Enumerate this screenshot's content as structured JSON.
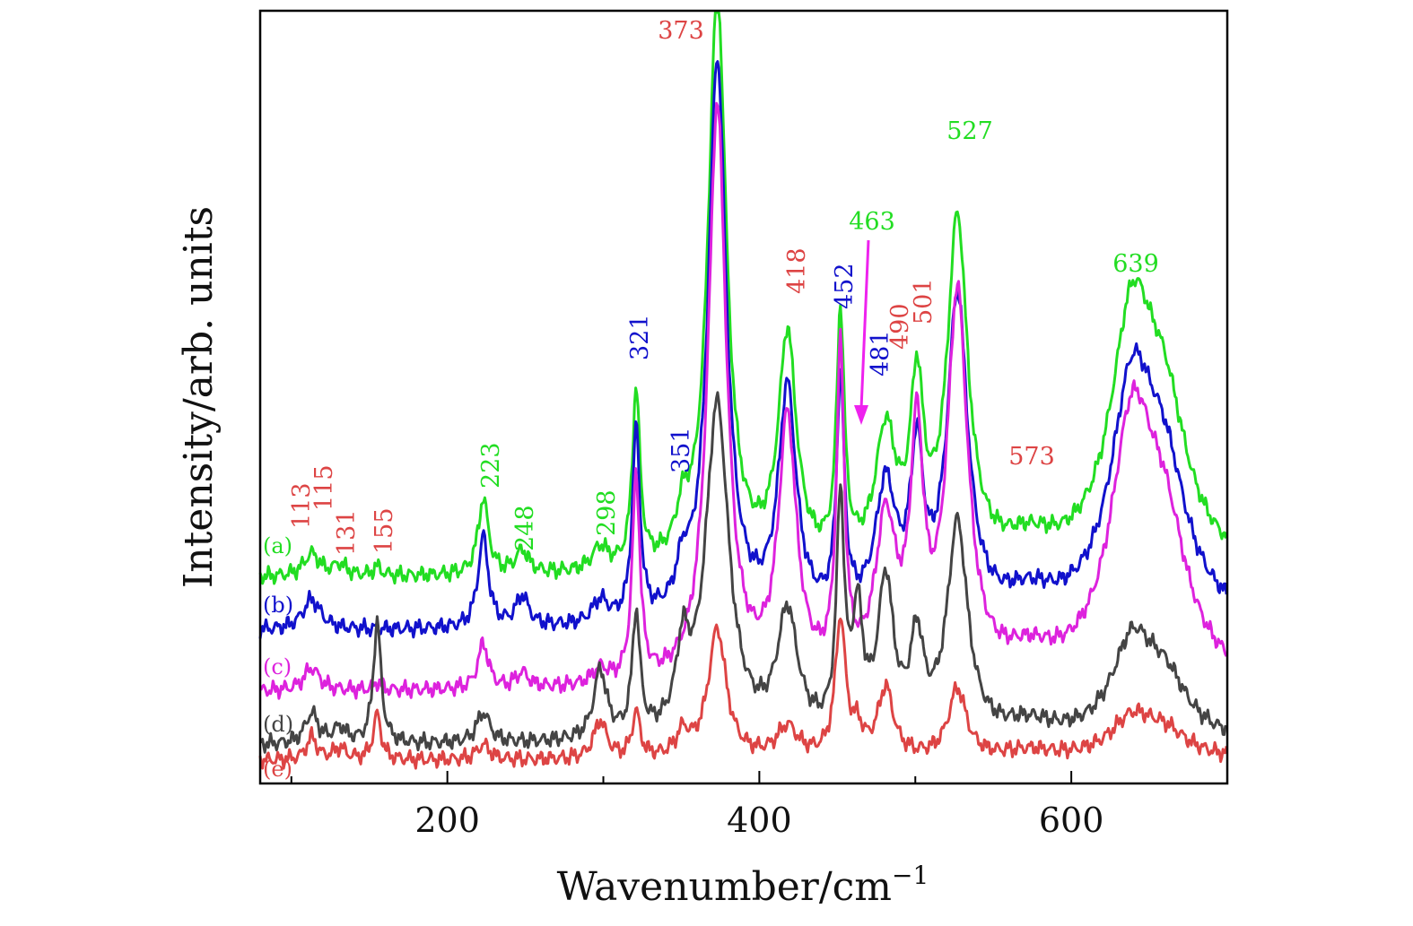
{
  "chart_data": {
    "type": "line",
    "title": "",
    "xlabel": "Wavenumber/cm",
    "xlabel_superscript": "−1",
    "ylabel": "Intensity/arb. units",
    "xlim": [
      80,
      700
    ],
    "ylim": [
      0,
      1
    ],
    "x_ticks": [
      "200",
      "400",
      "600"
    ],
    "y_ticks_labeled": false,
    "grid": false,
    "colors": {
      "green": "#22dd22",
      "blue": "#1111cc",
      "magenta": "#dd22dd",
      "gray": "#444444",
      "red": "#dd4444",
      "arrow": "#ee22ee"
    },
    "series": [
      {
        "name": "(a)",
        "color": "#22dd22",
        "base": 0.27,
        "peaks": [
          [
            113,
            0.03,
            6
          ],
          [
            131,
            0.015,
            5
          ],
          [
            155,
            0.012,
            3
          ],
          [
            223,
            0.1,
            4
          ],
          [
            248,
            0.03,
            5
          ],
          [
            298,
            0.03,
            6
          ],
          [
            321,
            0.23,
            3
          ],
          [
            351,
            0.05,
            5
          ],
          [
            373,
            0.76,
            7
          ],
          [
            418,
            0.3,
            7
          ],
          [
            452,
            0.32,
            3
          ],
          [
            481,
            0.17,
            8
          ],
          [
            501,
            0.22,
            5
          ],
          [
            527,
            0.45,
            8
          ],
          [
            573,
            0.03,
            20
          ],
          [
            639,
            0.31,
            17
          ]
        ],
        "shoulder": [
          [
            660,
            0.17,
            18
          ]
        ]
      },
      {
        "name": "(b)",
        "color": "#1111cc",
        "base": 0.2,
        "peaks": [
          [
            113,
            0.04,
            7
          ],
          [
            223,
            0.12,
            4
          ],
          [
            248,
            0.04,
            5
          ],
          [
            298,
            0.03,
            6
          ],
          [
            321,
            0.25,
            3
          ],
          [
            351,
            0.05,
            5
          ],
          [
            373,
            0.74,
            7
          ],
          [
            418,
            0.3,
            7
          ],
          [
            452,
            0.3,
            3
          ],
          [
            481,
            0.17,
            8
          ],
          [
            501,
            0.2,
            5
          ],
          [
            527,
            0.42,
            8
          ],
          [
            573,
            0.03,
            20
          ],
          [
            639,
            0.29,
            17
          ]
        ],
        "shoulder": [
          [
            660,
            0.16,
            18
          ]
        ]
      },
      {
        "name": "(c)",
        "color": "#dd22dd",
        "base": 0.12,
        "peaks": [
          [
            113,
            0.03,
            6
          ],
          [
            155,
            0.01,
            3
          ],
          [
            223,
            0.06,
            4
          ],
          [
            248,
            0.02,
            5
          ],
          [
            298,
            0.02,
            6
          ],
          [
            321,
            0.27,
            3
          ],
          [
            373,
            0.76,
            7
          ],
          [
            418,
            0.34,
            7
          ],
          [
            452,
            0.42,
            3
          ],
          [
            481,
            0.2,
            8
          ],
          [
            501,
            0.3,
            5
          ],
          [
            527,
            0.5,
            8
          ],
          [
            573,
            0.03,
            20
          ],
          [
            639,
            0.32,
            17
          ]
        ],
        "shoulder": [
          [
            660,
            0.16,
            18
          ]
        ]
      },
      {
        "name": "(d)",
        "color": "#444444",
        "base": 0.05,
        "peaks": [
          [
            113,
            0.04,
            5
          ],
          [
            131,
            0.02,
            5
          ],
          [
            155,
            0.16,
            3
          ],
          [
            223,
            0.04,
            5
          ],
          [
            298,
            0.09,
            5
          ],
          [
            321,
            0.16,
            3
          ],
          [
            351,
            0.1,
            5
          ],
          [
            373,
            0.44,
            9
          ],
          [
            418,
            0.16,
            8
          ],
          [
            452,
            0.3,
            3
          ],
          [
            463,
            0.15,
            4
          ],
          [
            481,
            0.2,
            6
          ],
          [
            501,
            0.12,
            5
          ],
          [
            527,
            0.28,
            8
          ],
          [
            573,
            0.02,
            20
          ],
          [
            639,
            0.12,
            16
          ]
        ],
        "shoulder": [
          [
            660,
            0.07,
            18
          ]
        ]
      },
      {
        "name": "(e)",
        "color": "#dd4444",
        "base": 0.03,
        "peaks": [
          [
            113,
            0.03,
            4
          ],
          [
            131,
            0.015,
            5
          ],
          [
            155,
            0.06,
            3
          ],
          [
            223,
            0.02,
            5
          ],
          [
            298,
            0.05,
            5
          ],
          [
            321,
            0.06,
            3
          ],
          [
            351,
            0.03,
            5
          ],
          [
            373,
            0.17,
            7
          ],
          [
            418,
            0.04,
            8
          ],
          [
            452,
            0.18,
            4
          ],
          [
            463,
            0.03,
            4
          ],
          [
            481,
            0.09,
            6
          ],
          [
            527,
            0.09,
            7
          ],
          [
            573,
            0.01,
            20
          ],
          [
            639,
            0.05,
            17
          ]
        ],
        "shoulder": [
          [
            660,
            0.03,
            18
          ]
        ]
      }
    ],
    "peak_annotations": [
      {
        "text": "113",
        "color": "red",
        "rotated": true
      },
      {
        "text": "115",
        "color": "red",
        "rotated": true
      },
      {
        "text": "131",
        "color": "red",
        "rotated": true
      },
      {
        "text": "155",
        "color": "red",
        "rotated": true
      },
      {
        "text": "223",
        "color": "green",
        "rotated": true
      },
      {
        "text": "248",
        "color": "green",
        "rotated": true
      },
      {
        "text": "298",
        "color": "green",
        "rotated": true
      },
      {
        "text": "321",
        "color": "blue",
        "rotated": true
      },
      {
        "text": "351",
        "color": "blue",
        "rotated": true
      },
      {
        "text": "373",
        "color": "red",
        "rotated": false
      },
      {
        "text": "418",
        "color": "red",
        "rotated": true
      },
      {
        "text": "452",
        "color": "blue",
        "rotated": true
      },
      {
        "text": "463",
        "color": "green",
        "rotated": false
      },
      {
        "text": "481",
        "color": "blue",
        "rotated": true
      },
      {
        "text": "490",
        "color": "red",
        "rotated": true
      },
      {
        "text": "501",
        "color": "red",
        "rotated": true
      },
      {
        "text": "527",
        "color": "green",
        "rotated": false
      },
      {
        "text": "573",
        "color": "red",
        "rotated": false
      },
      {
        "text": "639",
        "color": "green",
        "rotated": false
      }
    ]
  }
}
